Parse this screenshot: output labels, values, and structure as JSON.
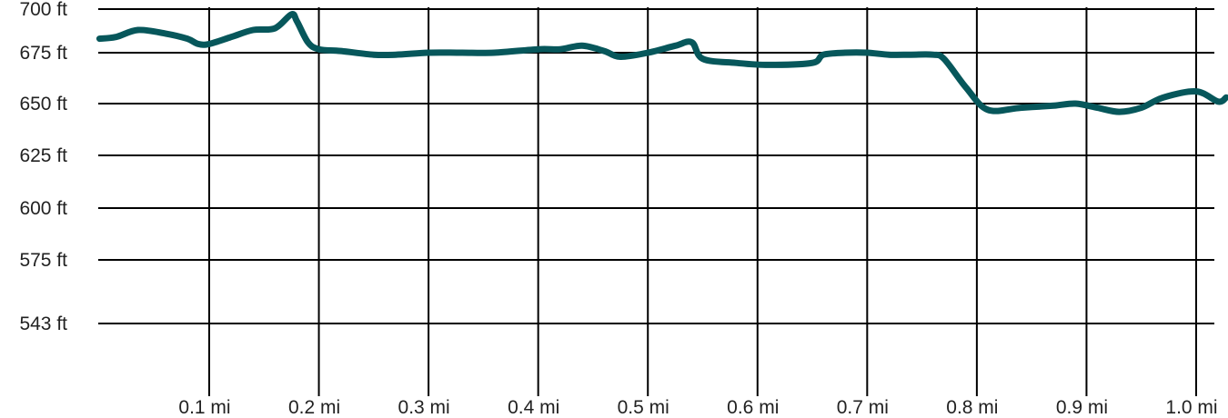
{
  "chart_data": {
    "type": "line",
    "title": "",
    "xlabel": "",
    "ylabel": "",
    "grid": true,
    "line_color": "#07575b",
    "y_ticks": [
      {
        "value": 700,
        "label": "700 ft"
      },
      {
        "value": 675,
        "label": "675 ft"
      },
      {
        "value": 650,
        "label": "650 ft"
      },
      {
        "value": 625,
        "label": "625 ft"
      },
      {
        "value": 600,
        "label": "600 ft"
      },
      {
        "value": 575,
        "label": "575 ft"
      },
      {
        "value": 543,
        "label": "543 ft"
      }
    ],
    "x_ticks": [
      {
        "value": 0.1,
        "label": "0.1 mi"
      },
      {
        "value": 0.2,
        "label": "0.2 mi"
      },
      {
        "value": 0.3,
        "label": "0.3 mi"
      },
      {
        "value": 0.4,
        "label": "0.4 mi"
      },
      {
        "value": 0.5,
        "label": "0.5 mi"
      },
      {
        "value": 0.6,
        "label": "0.6 mi"
      },
      {
        "value": 0.7,
        "label": "0.7 mi"
      },
      {
        "value": 0.8,
        "label": "0.8 mi"
      },
      {
        "value": 0.9,
        "label": "0.9 mi"
      },
      {
        "value": 1.0,
        "label": "1.0 mi"
      }
    ],
    "x": [
      0.0,
      0.015,
      0.035,
      0.06,
      0.08,
      0.09,
      0.1,
      0.12,
      0.14,
      0.16,
      0.175,
      0.18,
      0.19,
      0.2,
      0.22,
      0.25,
      0.27,
      0.3,
      0.33,
      0.36,
      0.4,
      0.42,
      0.44,
      0.46,
      0.475,
      0.5,
      0.525,
      0.54,
      0.55,
      0.58,
      0.61,
      0.65,
      0.66,
      0.68,
      0.7,
      0.72,
      0.74,
      0.76,
      0.77,
      0.79,
      0.81,
      0.84,
      0.87,
      0.89,
      0.91,
      0.93,
      0.95,
      0.97,
      1.0,
      1.02,
      1.04
    ],
    "series": [
      {
        "values": [
          683,
          684,
          688,
          686,
          683,
          680,
          680,
          684,
          688,
          689,
          697,
          693,
          681,
          677,
          676,
          674,
          674,
          675,
          675,
          675,
          677,
          677,
          679,
          676,
          673,
          675,
          679,
          681,
          672,
          670,
          669,
          670,
          674,
          675,
          675,
          674,
          674,
          674,
          672,
          658,
          647,
          648,
          649,
          650,
          648,
          646,
          648,
          653,
          656,
          651,
          653
        ]
      }
    ]
  }
}
